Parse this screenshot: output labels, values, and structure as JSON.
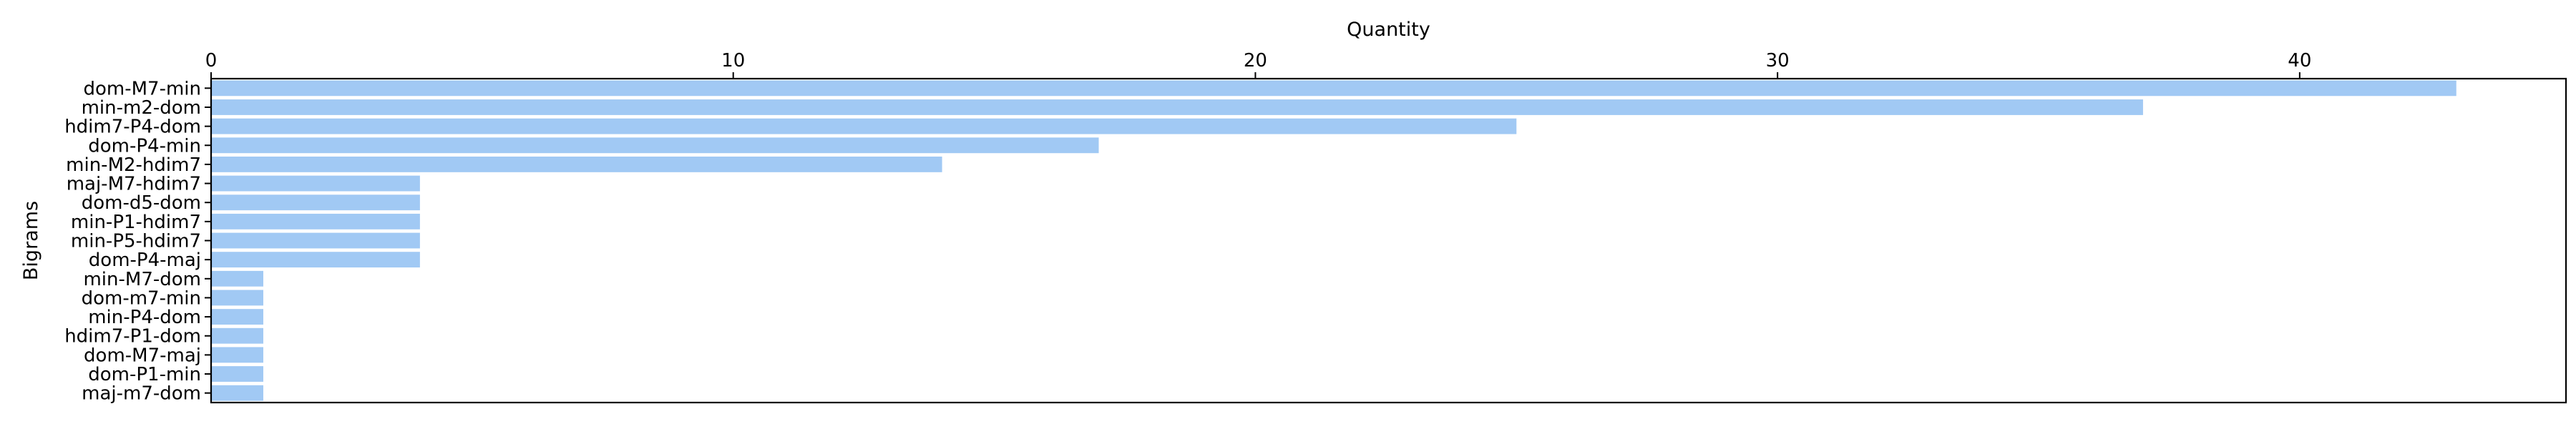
{
  "chart_data": {
    "type": "bar",
    "orientation": "horizontal",
    "xlabel": "Quantity",
    "ylabel": "Bigrams",
    "x_axis_position": "top",
    "xlim": [
      0,
      45.1
    ],
    "xticks": [
      0,
      10,
      20,
      30,
      40
    ],
    "grid": false,
    "bar_color": "#a1c9f4",
    "categories": [
      "dom-M7-min",
      "min-m2-dom",
      "hdim7-P4-dom",
      "dom-P4-min",
      "min-M2-hdim7",
      "maj-M7-hdim7",
      "dom-d5-dom",
      "min-P1-hdim7",
      "min-P5-hdim7",
      "dom-P4-maj",
      "min-M7-dom",
      "dom-m7-min",
      "min-P4-dom",
      "hdim7-P1-dom",
      "dom-M7-maj",
      "dom-P1-min",
      "maj-m7-dom"
    ],
    "values": [
      43,
      37,
      25,
      17,
      14,
      4,
      4,
      4,
      4,
      4,
      1,
      1,
      1,
      1,
      1,
      1,
      1
    ]
  }
}
